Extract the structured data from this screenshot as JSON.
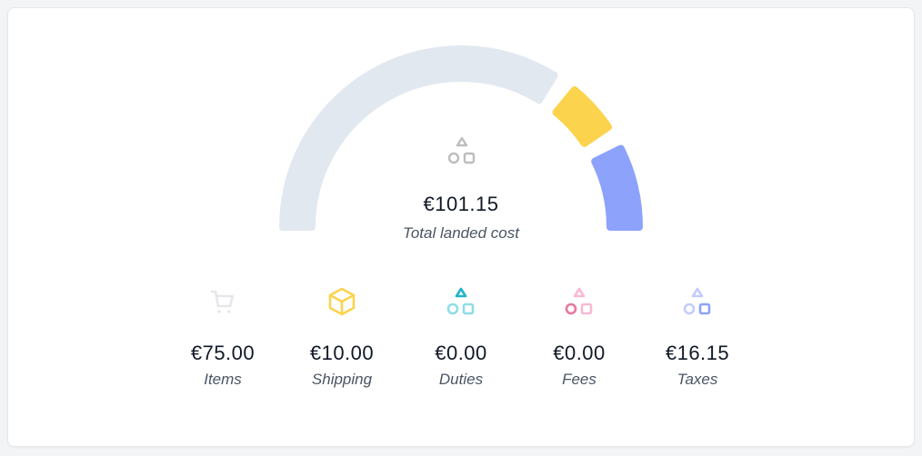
{
  "total": {
    "value": "€101.15",
    "label": "Total landed cost",
    "icon": "shapes-icon"
  },
  "chart_data": {
    "type": "gauge",
    "segments": [
      {
        "key": "items",
        "value": 75.0,
        "color": "#e2e8f0"
      },
      {
        "key": "shipping",
        "value": 10.0,
        "color": "#fcd34d"
      },
      {
        "key": "duties",
        "value": 0.0,
        "color": "#22d3ee"
      },
      {
        "key": "fees",
        "value": 0.0,
        "color": "#f472b6"
      },
      {
        "key": "taxes",
        "value": 16.15,
        "color": "#8da2fb"
      }
    ]
  },
  "breakdown": [
    {
      "value": "€75.00",
      "label": "Items",
      "icon": "cart-icon",
      "color": "#e5e7eb"
    },
    {
      "value": "€10.00",
      "label": "Shipping",
      "icon": "box-icon",
      "color": "#fcd34d"
    },
    {
      "value": "€0.00",
      "label": "Duties",
      "icon": "shapes-icon",
      "color": "#22b8c8"
    },
    {
      "value": "€0.00",
      "label": "Fees",
      "icon": "shapes-icon",
      "color": "#ec8fb8"
    },
    {
      "value": "€16.15",
      "label": "Taxes",
      "icon": "shapes-icon",
      "color": "#8da2fb"
    }
  ]
}
